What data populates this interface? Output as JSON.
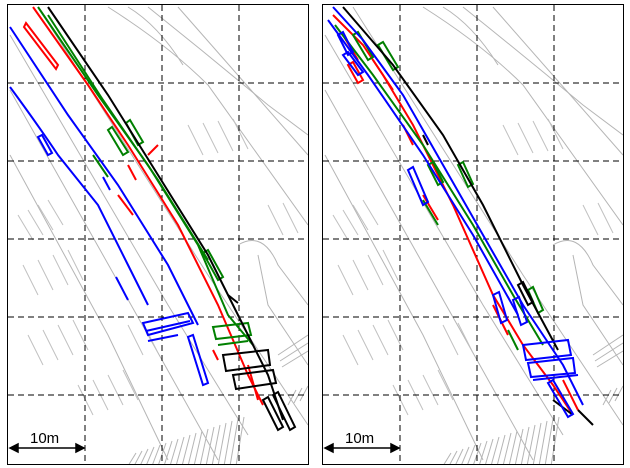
{
  "panels": [
    {
      "scale_bar": {
        "label": "10m"
      }
    },
    {
      "scale_bar": {
        "label": "10m"
      }
    }
  ],
  "colors": {
    "background": "#ffffff",
    "grid": "#000000",
    "map": "#b5b5b5",
    "trajectory_blue": "#0000ff",
    "trajectory_red": "#ff0000",
    "trajectory_green": "#008000",
    "trajectory_black": "#000000"
  }
}
